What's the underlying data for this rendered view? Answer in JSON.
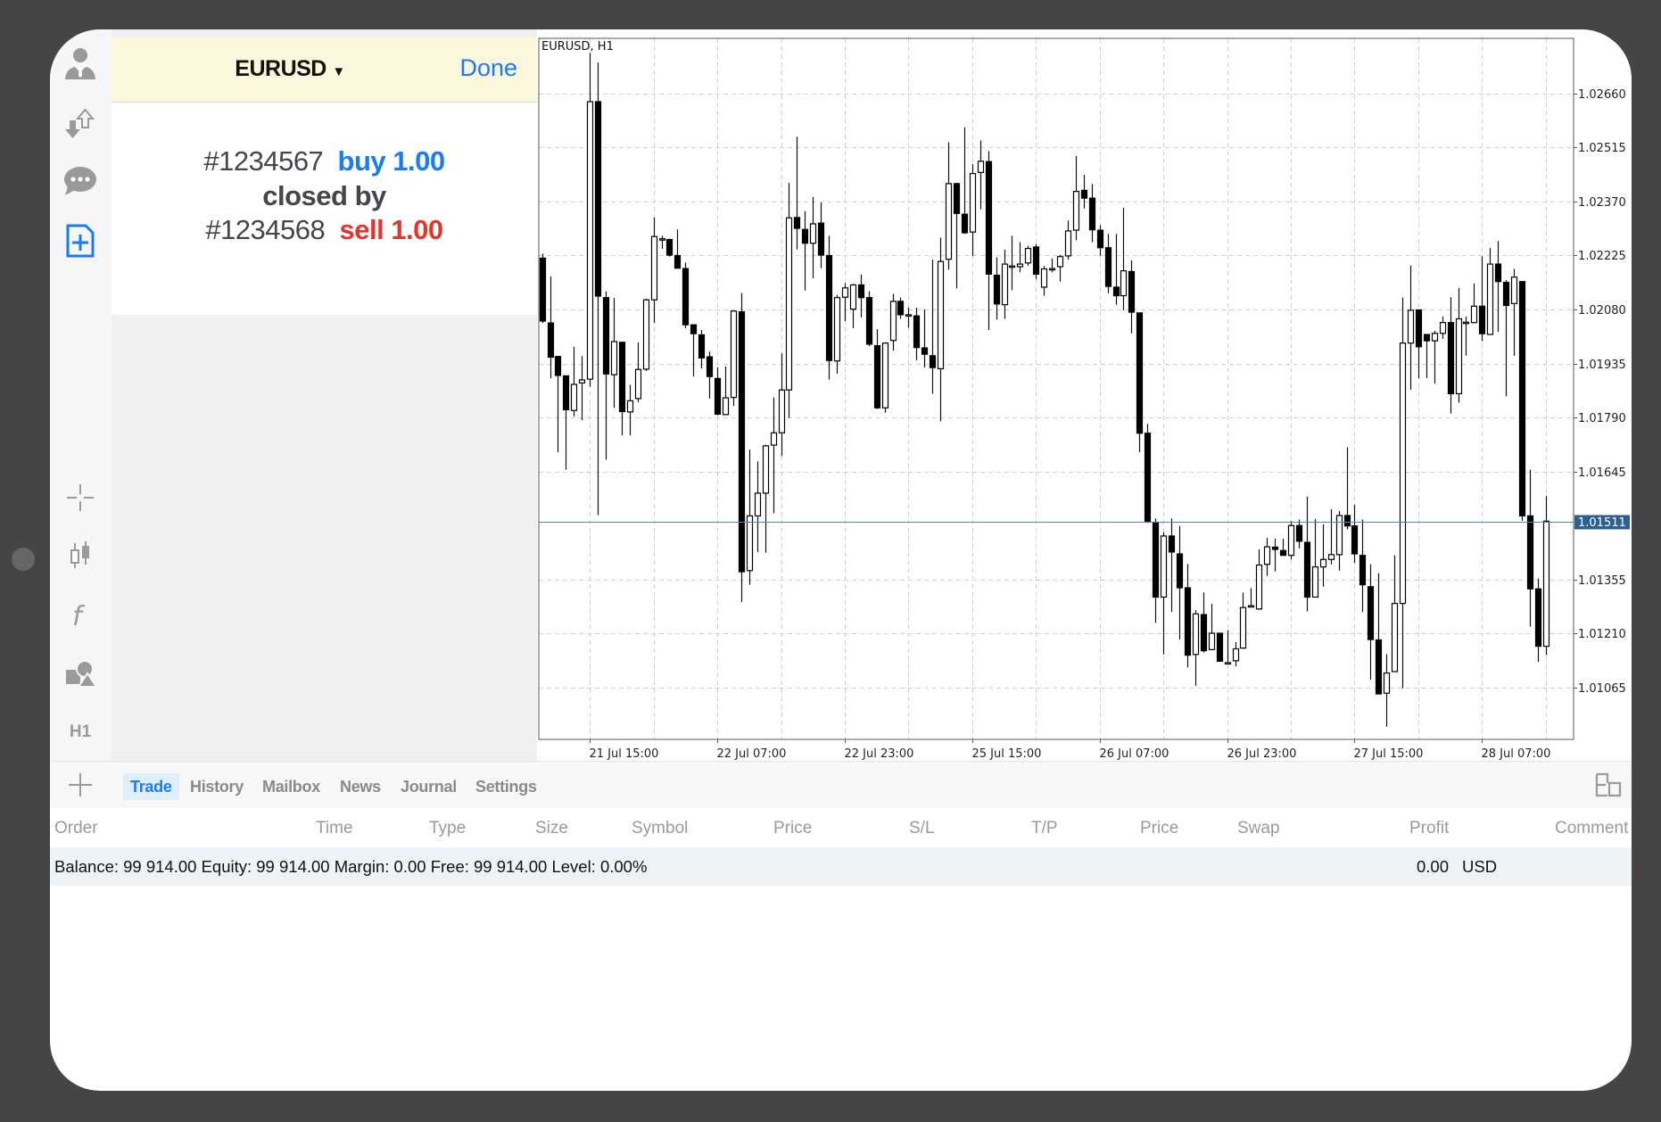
{
  "sidebar": {
    "items": [
      {
        "icon": "account-person-icon"
      },
      {
        "icon": "trade-arrows-icon"
      },
      {
        "icon": "chat-icon"
      },
      {
        "icon": "new-order-document-icon",
        "active": true
      },
      {
        "icon": "crosshair-icon"
      },
      {
        "icon": "chart-type-candlestick-icon"
      },
      {
        "icon": "indicators-f-icon"
      },
      {
        "icon": "objects-shapes-icon"
      },
      {
        "icon": "timeframe",
        "label": "H1"
      }
    ]
  },
  "panel": {
    "symbol": "EURUSD",
    "symbol_caret": "▼",
    "done_label": "Done",
    "order_1": "#1234567",
    "order_1_action": "buy 1.00",
    "closed_by": "closed by",
    "order_2": "#1234568",
    "order_2_action": "sell 1.00"
  },
  "colors": {
    "accent": "#1a7cf5",
    "sell": "#e2352b",
    "header_bg": "#fcf6dc",
    "price_line": "#5b7fb0",
    "price_label_bg": "#2e5f93"
  },
  "chart_data": {
    "type": "candlestick",
    "title": "EURUSD, H1",
    "ylim": [
      1.00926,
      1.02808
    ],
    "grid": true,
    "y_ticks": [
      "1.02660",
      "1.02515",
      "1.02370",
      "1.02225",
      "1.02080",
      "1.01935",
      "1.01790",
      "1.01645",
      "1.01355",
      "1.01210",
      "1.01065"
    ],
    "x_tick_labels": [
      "21 Jul 15:00",
      "22 Jul 07:00",
      "22 Jul 23:00",
      "25 Jul 15:00",
      "26 Jul 07:00",
      "26 Jul 23:00",
      "27 Jul 15:00",
      "28 Jul 07:00"
    ],
    "current_price": "1.01511",
    "ohlc": [
      [
        1.02218,
        1.0223,
        1.02044,
        1.02049
      ],
      [
        1.02044,
        1.02169,
        1.01895,
        1.01952
      ],
      [
        1.01954,
        1.01954,
        1.01697,
        1.01903
      ],
      [
        1.01902,
        1.01902,
        1.0165,
        1.01811
      ],
      [
        1.01809,
        1.0198,
        1.01793,
        1.01879
      ],
      [
        1.01883,
        1.01955,
        1.01783,
        1.01891
      ],
      [
        1.01893,
        1.02769,
        1.01873,
        1.02638
      ],
      [
        1.02638,
        1.02743,
        1.01528,
        1.02116
      ],
      [
        1.02112,
        1.02129,
        1.01677,
        1.01907
      ],
      [
        1.01905,
        1.02111,
        1.01816,
        1.01994
      ],
      [
        1.01992,
        1.01992,
        1.01742,
        1.01806
      ],
      [
        1.01805,
        1.01878,
        1.01742,
        1.01835
      ],
      [
        1.01841,
        1.01992,
        1.01831,
        1.01919
      ],
      [
        1.0192,
        1.02109,
        1.01915,
        1.02106
      ],
      [
        1.02106,
        1.02327,
        1.02044,
        1.02276
      ],
      [
        1.0227,
        1.02278,
        1.02243,
        1.0227
      ],
      [
        1.02268,
        1.0227,
        1.02222,
        1.02226
      ],
      [
        1.02225,
        1.02295,
        1.0219,
        1.02191
      ],
      [
        1.0219,
        1.02206,
        1.0203,
        1.02039
      ],
      [
        1.02039,
        1.02039,
        1.019,
        1.02015
      ],
      [
        1.02012,
        1.02025,
        1.01922,
        1.0195
      ],
      [
        1.01953,
        1.01967,
        1.01841,
        1.019
      ],
      [
        1.01895,
        1.01925,
        1.01796,
        1.01799
      ],
      [
        1.01798,
        1.01927,
        1.01797,
        1.01843
      ],
      [
        1.01844,
        1.02077,
        1.01821,
        1.02076
      ],
      [
        1.02074,
        1.02124,
        1.01295,
        1.01376
      ],
      [
        1.01379,
        1.01704,
        1.01341,
        1.01526
      ],
      [
        1.01526,
        1.01672,
        1.01429,
        1.01587
      ],
      [
        1.01587,
        1.01717,
        1.01427,
        1.01714
      ],
      [
        1.01716,
        1.01844,
        1.01533,
        1.01749
      ],
      [
        1.01749,
        1.01962,
        1.01687,
        1.01864
      ],
      [
        1.01864,
        1.0242,
        1.01789,
        1.02326
      ],
      [
        1.02327,
        1.02544,
        1.02241,
        1.02298
      ],
      [
        1.02295,
        1.02344,
        1.02131,
        1.02258
      ],
      [
        1.02258,
        1.02382,
        1.02164,
        1.0231
      ],
      [
        1.02312,
        1.02367,
        1.02191,
        1.02226
      ],
      [
        1.02225,
        1.02278,
        1.01892,
        1.01943
      ],
      [
        1.01942,
        1.02119,
        1.01908,
        1.02112
      ],
      [
        1.02113,
        1.02151,
        1.02049,
        1.02138
      ],
      [
        1.02081,
        1.02149,
        1.0203,
        1.02146
      ],
      [
        1.02146,
        1.02174,
        1.02059,
        1.02112
      ],
      [
        1.02112,
        1.02129,
        1.01982,
        1.01987
      ],
      [
        1.01983,
        1.02027,
        1.01813,
        1.01816
      ],
      [
        1.01816,
        1.01992,
        1.01803,
        1.0199
      ],
      [
        1.01997,
        1.02122,
        1.0197,
        1.02102
      ],
      [
        1.02102,
        1.02112,
        1.02055,
        1.02066
      ],
      [
        1.02066,
        1.02085,
        1.02031,
        1.02066
      ],
      [
        1.02063,
        1.02085,
        1.01944,
        1.01978
      ],
      [
        1.01977,
        1.0208,
        1.01924,
        1.0196
      ],
      [
        1.01956,
        1.02214,
        1.01854,
        1.01924
      ],
      [
        1.01921,
        1.02273,
        1.0178,
        1.02209
      ],
      [
        1.02215,
        1.02529,
        1.02187,
        1.02418
      ],
      [
        1.02418,
        1.0242,
        1.02137,
        1.02338
      ],
      [
        1.02336,
        1.02569,
        1.02283,
        1.02286
      ],
      [
        1.02288,
        1.0247,
        1.02224,
        1.02445
      ],
      [
        1.02448,
        1.02534,
        1.02349,
        1.02478
      ],
      [
        1.02477,
        1.02505,
        1.02025,
        1.02175
      ],
      [
        1.02172,
        1.0222,
        1.02053,
        1.02095
      ],
      [
        1.02093,
        1.02241,
        1.02055,
        1.02202
      ],
      [
        1.02197,
        1.02278,
        1.02132,
        1.02197
      ],
      [
        1.02195,
        1.02261,
        1.0218,
        1.02202
      ],
      [
        1.02205,
        1.02251,
        1.02197,
        1.02244
      ],
      [
        1.02248,
        1.02256,
        1.02162,
        1.02175
      ],
      [
        1.0214,
        1.02197,
        1.02117,
        1.02189
      ],
      [
        1.0219,
        1.02217,
        1.0218,
        1.0219
      ],
      [
        1.02195,
        1.02227,
        1.02155,
        1.02222
      ],
      [
        1.02224,
        1.02319,
        1.02214,
        1.02291
      ],
      [
        1.02293,
        1.02492,
        1.02266,
        1.02397
      ],
      [
        1.024,
        1.02442,
        1.02351,
        1.02379
      ],
      [
        1.02379,
        1.02417,
        1.02261,
        1.02294
      ],
      [
        1.02293,
        1.02306,
        1.02224,
        1.02246
      ],
      [
        1.02246,
        1.02283,
        1.02124,
        1.02142
      ],
      [
        1.0214,
        1.02283,
        1.02093,
        1.02117
      ],
      [
        1.02117,
        1.02353,
        1.02078,
        1.02184
      ],
      [
        1.02182,
        1.02212,
        1.02016,
        1.02073
      ],
      [
        1.02071,
        1.02071,
        1.01697,
        1.01748
      ],
      [
        1.01748,
        1.01773,
        1.01509,
        1.01509
      ],
      [
        1.01509,
        1.01519,
        1.01239,
        1.01308
      ],
      [
        1.01308,
        1.01482,
        1.01154,
        1.01472
      ],
      [
        1.01472,
        1.01519,
        1.01268,
        1.01429
      ],
      [
        1.01424,
        1.01499,
        1.01194,
        1.01333
      ],
      [
        1.01333,
        1.01397,
        1.01119,
        1.01152
      ],
      [
        1.01154,
        1.01273,
        1.0107,
        1.01263
      ],
      [
        1.01261,
        1.0132,
        1.01159,
        1.01164
      ],
      [
        1.01167,
        1.0129,
        1.01166,
        1.01211
      ],
      [
        1.01211,
        1.01211,
        1.01134,
        1.01136
      ],
      [
        1.01132,
        1.01219,
        1.01129,
        1.01132
      ],
      [
        1.01137,
        1.01187,
        1.01122,
        1.01169
      ],
      [
        1.01171,
        1.0132,
        1.01169,
        1.0128
      ],
      [
        1.01285,
        1.01332,
        1.01281,
        1.01285
      ],
      [
        1.01276,
        1.01436,
        1.01274,
        1.01394
      ],
      [
        1.01396,
        1.01467,
        1.01365,
        1.01443
      ],
      [
        1.01442,
        1.01465,
        1.01377,
        1.01436
      ],
      [
        1.01433,
        1.01465,
        1.0142,
        1.0142
      ],
      [
        1.0142,
        1.01512,
        1.01409,
        1.015
      ],
      [
        1.015,
        1.01516,
        1.01439,
        1.01458
      ],
      [
        1.01455,
        1.01578,
        1.0127,
        1.01308
      ],
      [
        1.01308,
        1.01518,
        1.01308,
        1.01389
      ],
      [
        1.01389,
        1.01503,
        1.01336,
        1.01409
      ],
      [
        1.01409,
        1.01544,
        1.01396,
        1.01422
      ],
      [
        1.01422,
        1.01539,
        1.01379,
        1.01527
      ],
      [
        1.01527,
        1.0171,
        1.0149,
        1.01499
      ],
      [
        1.01499,
        1.01556,
        1.014,
        1.01424
      ],
      [
        1.0142,
        1.01516,
        1.01268,
        1.01341
      ],
      [
        1.01336,
        1.01396,
        1.01086,
        1.01194
      ],
      [
        1.01193,
        1.01372,
        1.01048,
        1.01048
      ],
      [
        1.0105,
        1.01155,
        1.0096,
        1.01104
      ],
      [
        1.01108,
        1.0142,
        1.01107,
        1.01291
      ],
      [
        1.01291,
        1.02112,
        1.01063,
        1.0199
      ],
      [
        1.0199,
        1.02198,
        1.01865,
        1.02078
      ],
      [
        1.02079,
        1.02079,
        1.01896,
        1.0198
      ],
      [
        1.02013,
        1.02013,
        1.01896,
        1.01996
      ],
      [
        1.01996,
        1.02023,
        1.01881,
        1.02016
      ],
      [
        1.02016,
        1.02061,
        1.02001,
        1.02045
      ],
      [
        1.02045,
        1.02113,
        1.01801,
        1.01854
      ],
      [
        1.01854,
        1.02138,
        1.0183,
        1.02055
      ],
      [
        1.02046,
        1.02061,
        1.01956,
        1.02046
      ],
      [
        1.02045,
        1.0215,
        1.02043,
        1.02089
      ],
      [
        1.02089,
        1.02223,
        1.01995,
        1.02015
      ],
      [
        1.02013,
        1.02245,
        1.02012,
        1.02202
      ],
      [
        1.02202,
        1.02264,
        1.0202,
        1.02155
      ],
      [
        1.02153,
        1.02159,
        1.01847,
        1.02091
      ],
      [
        1.02096,
        1.02189,
        1.01956,
        1.02167
      ],
      [
        1.02155,
        1.02155,
        1.01513,
        1.01526
      ],
      [
        1.01526,
        1.0165,
        1.01229,
        1.0133
      ],
      [
        1.0133,
        1.01358,
        1.01134,
        1.01176
      ],
      [
        1.01176,
        1.0158,
        1.01153,
        1.01512
      ]
    ]
  },
  "terminal": {
    "add_icon": "plus-icon",
    "tabs": [
      {
        "label": "Trade",
        "active": true
      },
      {
        "label": "History"
      },
      {
        "label": "Mailbox"
      },
      {
        "label": "News"
      },
      {
        "label": "Journal"
      },
      {
        "label": "Settings"
      }
    ],
    "layout_icon": "split-layout-icon",
    "columns": [
      "Order",
      "Time",
      "Type",
      "Size",
      "Symbol",
      "Price",
      "S/L",
      "T/P",
      "Price",
      "Swap",
      "Profit",
      "Comment"
    ],
    "balance_text": "Balance: 99 914.00 Equity: 99 914.00 Margin: 0.00 Free: 99 914.00 Level: 0.00%",
    "profit": "0.00",
    "currency": "USD"
  }
}
